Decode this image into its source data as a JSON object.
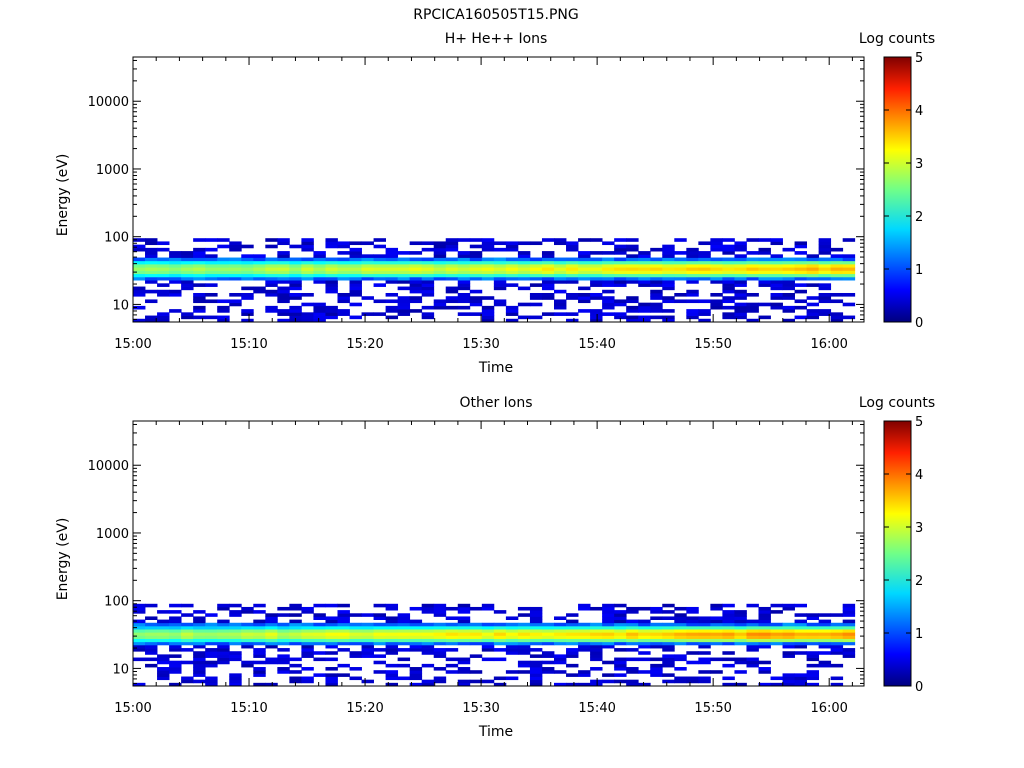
{
  "figure_title": "RPCICA160505T15.PNG",
  "chart_data": [
    {
      "type": "heatmap",
      "title": "H+ He++ Ions",
      "xlabel": "Time",
      "ylabel": "Energy (eV)",
      "x_ticks": [
        "15:00",
        "15:10",
        "15:20",
        "15:30",
        "15:40",
        "15:50",
        "16:00"
      ],
      "x_range": [
        "15:00",
        "16:03"
      ],
      "y_scale": "log",
      "y_range": [
        5.5,
        45000
      ],
      "y_ticks": [
        10,
        100,
        1000,
        10000
      ],
      "y_tick_labels": [
        "10",
        "100",
        "1000",
        "10000"
      ],
      "colorbar": {
        "label": "Log counts",
        "range": [
          0,
          5
        ],
        "ticks": [
          "0",
          "1",
          "2",
          "3",
          "4",
          "5"
        ]
      },
      "band": {
        "core_energy_eV": [
          25,
          45
        ],
        "peak_log_counts_start": 2.6,
        "peak_log_counts_end": 3.5,
        "sparse_energy_eV": [
          5.5,
          95
        ],
        "sparse_log_counts": [
          0.2,
          0.6
        ]
      }
    },
    {
      "type": "heatmap",
      "title": "Other Ions",
      "xlabel": "Time",
      "ylabel": "Energy (eV)",
      "x_ticks": [
        "15:00",
        "15:10",
        "15:20",
        "15:30",
        "15:40",
        "15:50",
        "16:00"
      ],
      "x_range": [
        "15:00",
        "16:03"
      ],
      "y_scale": "log",
      "y_range": [
        5.5,
        45000
      ],
      "y_ticks": [
        10,
        100,
        1000,
        10000
      ],
      "y_tick_labels": [
        "10",
        "100",
        "1000",
        "10000"
      ],
      "colorbar": {
        "label": "Log counts",
        "range": [
          0,
          5
        ],
        "ticks": [
          "0",
          "1",
          "2",
          "3",
          "4",
          "5"
        ]
      },
      "band": {
        "core_energy_eV": [
          24,
          42
        ],
        "peak_log_counts_start": 2.7,
        "peak_log_counts_end": 3.7,
        "sparse_energy_eV": [
          5.5,
          90
        ],
        "sparse_log_counts": [
          0.2,
          0.6
        ]
      }
    }
  ]
}
